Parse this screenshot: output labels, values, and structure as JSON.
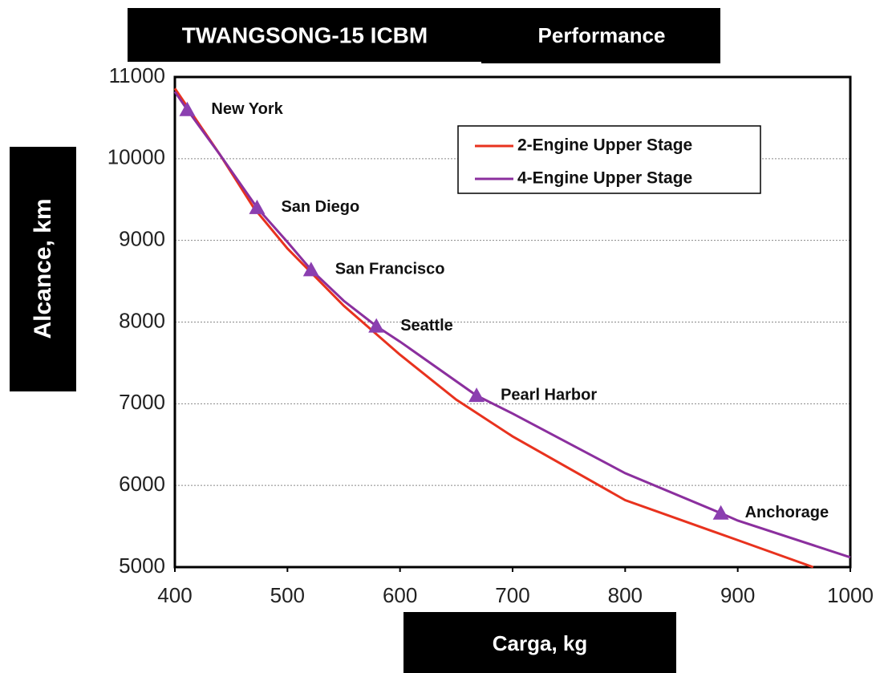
{
  "chart_data": {
    "type": "line",
    "title": "TWANGSONG-15 ICBM",
    "subtitle": "Performance",
    "x_label": "Carga, kg",
    "y_label": "Alcance, km",
    "xlim": [
      400,
      1000
    ],
    "ylim": [
      5000,
      11000
    ],
    "xticks": [
      400,
      500,
      600,
      700,
      800,
      900,
      1000
    ],
    "yticks": [
      5000,
      6000,
      7000,
      8000,
      9000,
      10000,
      11000
    ],
    "grid": true,
    "legend": "upper right",
    "series": [
      {
        "name": "2-Engine Upper Stage",
        "color": "#e8321e",
        "x": [
          400,
          440,
          470,
          500,
          550,
          600,
          650,
          700,
          800,
          900,
          967
        ],
        "values": [
          10860,
          10050,
          9400,
          8900,
          8200,
          7600,
          7050,
          6600,
          5820,
          5330,
          5000
        ]
      },
      {
        "name": "4-Engine Upper Stage",
        "color": "#8b2f9e",
        "x": [
          400,
          411,
          440,
          473,
          500,
          521,
          550,
          579,
          600,
          668,
          700,
          800,
          885,
          900,
          1000
        ],
        "values": [
          10820,
          10600,
          10050,
          9400,
          8980,
          8640,
          8260,
          7950,
          7760,
          7100,
          6880,
          6150,
          5660,
          5570,
          5120
        ]
      }
    ],
    "annotations": [
      {
        "text": "New York",
        "x": 411,
        "y": 10600
      },
      {
        "text": "San Diego",
        "x": 473,
        "y": 9400
      },
      {
        "text": "San Francisco",
        "x": 521,
        "y": 8640
      },
      {
        "text": "Seattle",
        "x": 579,
        "y": 7950
      },
      {
        "text": "Pearl Harbor",
        "x": 668,
        "y": 7100
      },
      {
        "text": "Anchorage",
        "x": 885,
        "y": 5660
      }
    ],
    "marker_color": "#8b3fb0"
  }
}
